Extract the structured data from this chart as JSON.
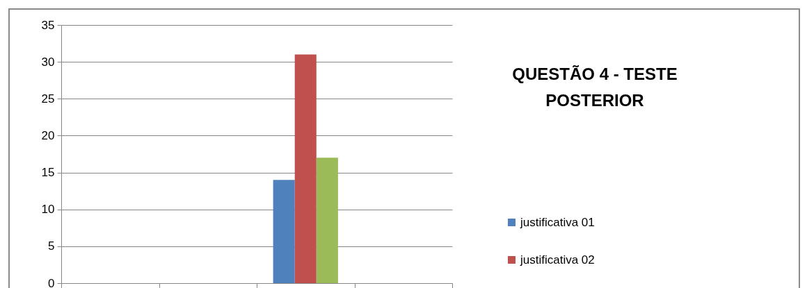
{
  "chart_data": {
    "type": "bar",
    "title": "QUESTÃO 4 - TESTE POSTERIOR",
    "categories": [
      null,
      null,
      null,
      null
    ],
    "series": [
      {
        "name": "justificativa 01",
        "color": "#4f81bd",
        "values": [
          0,
          0,
          14,
          0
        ]
      },
      {
        "name": "justificativa 02",
        "color": "#c0504d",
        "values": [
          0,
          0,
          31,
          0
        ]
      },
      {
        "color": "#9bbb59",
        "values": [
          0,
          0,
          17,
          0
        ]
      }
    ],
    "ylim": [
      0,
      35
    ],
    "yticks": [
      0,
      5,
      10,
      15,
      20,
      25,
      30,
      35
    ],
    "grid": "y",
    "legend": "right"
  }
}
